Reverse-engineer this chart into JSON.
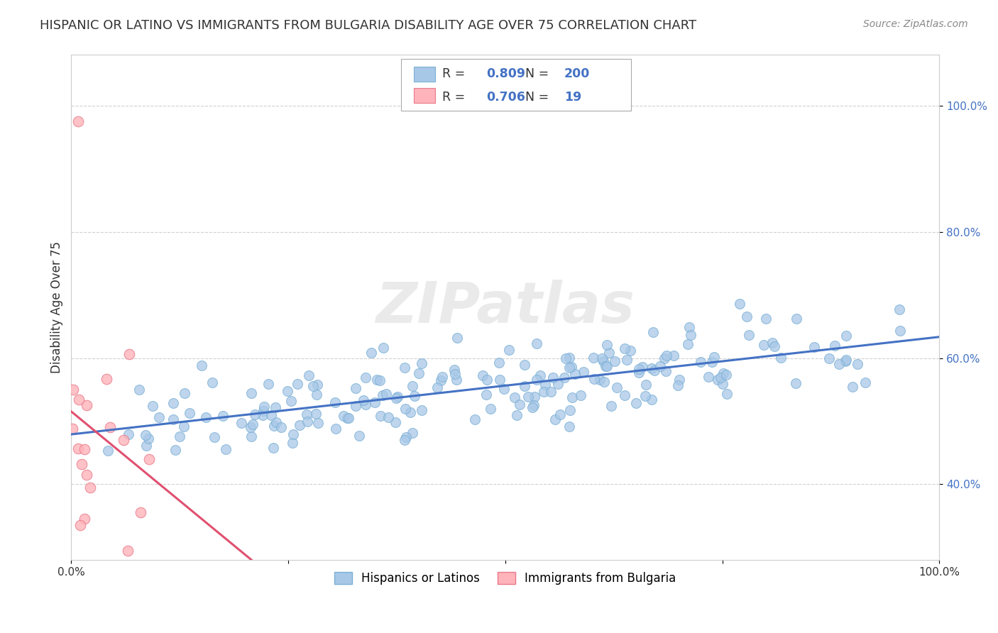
{
  "title": "HISPANIC OR LATINO VS IMMIGRANTS FROM BULGARIA DISABILITY AGE OVER 75 CORRELATION CHART",
  "source": "Source: ZipAtlas.com",
  "ylabel": "Disability Age Over 75",
  "xlim": [
    0,
    1
  ],
  "ylim": [
    0.28,
    1.08
  ],
  "y_ticks": [
    0.4,
    0.6,
    0.8,
    1.0
  ],
  "y_tick_labels": [
    "40.0%",
    "60.0%",
    "80.0%",
    "100.0%"
  ],
  "series1_color": "#a8c8e8",
  "series1_edge": "#7aafd4",
  "series1_line_color": "#4472C4",
  "series2_color": "#ffb3ba",
  "series2_edge": "#e87a8a",
  "series2_line_color": "#e05070",
  "legend_r1": "0.809",
  "legend_n1": "200",
  "legend_r2": "0.706",
  "legend_n2": "19",
  "legend_label1": "Hispanics or Latinos",
  "legend_label2": "Immigrants from Bulgaria",
  "watermark": "ZIPatlas",
  "background_color": "#ffffff",
  "grid_color": "#d0d0d0",
  "title_fontsize": 13,
  "axis_fontsize": 12,
  "tick_fontsize": 11,
  "value_color": "#4472C4",
  "seed1": 42,
  "seed2": 7
}
